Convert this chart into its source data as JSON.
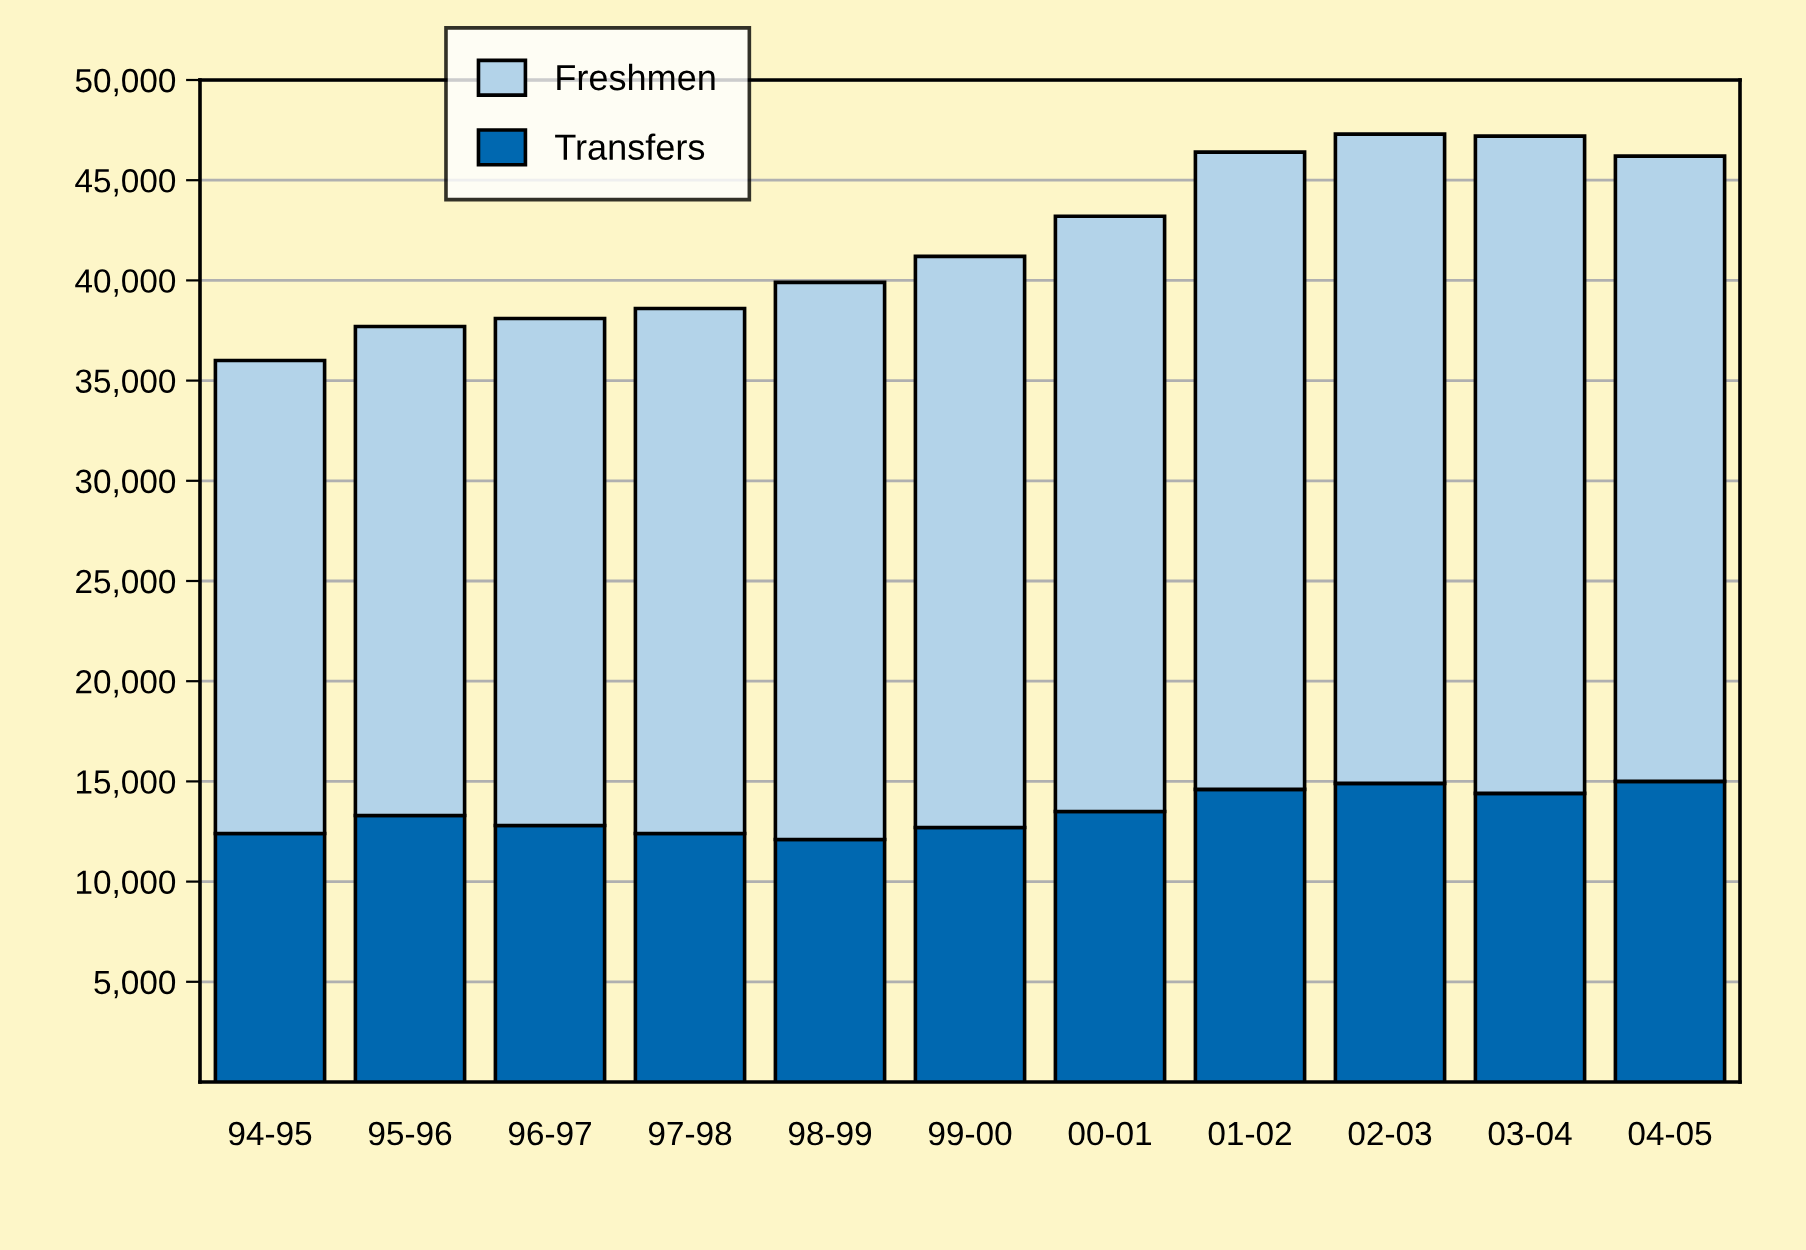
{
  "chart_data": {
    "type": "bar",
    "stacked": true,
    "categories": [
      "94-95",
      "95-96",
      "96-97",
      "97-98",
      "98-99",
      "99-00",
      "00-01",
      "01-02",
      "02-03",
      "03-04",
      "04-05"
    ],
    "series": [
      {
        "name": "Transfers",
        "color": "#0068b0",
        "values": [
          12400,
          13300,
          12800,
          12400,
          12100,
          12700,
          13500,
          14600,
          14900,
          14400,
          15000
        ]
      },
      {
        "name": "Freshmen",
        "color": "#b3d3e9",
        "values": [
          23600,
          24400,
          25300,
          26200,
          27800,
          28500,
          29700,
          31800,
          32400,
          32800,
          31200
        ]
      }
    ],
    "ylim": [
      0,
      50000
    ],
    "yticks": [
      {
        "value": 5000,
        "label": "5,000"
      },
      {
        "value": 10000,
        "label": "10,000"
      },
      {
        "value": 15000,
        "label": "15,000"
      },
      {
        "value": 20000,
        "label": "20,000"
      },
      {
        "value": 25000,
        "label": "25,000"
      },
      {
        "value": 30000,
        "label": "30,000"
      },
      {
        "value": 35000,
        "label": "35,000"
      },
      {
        "value": 40000,
        "label": "40,000"
      },
      {
        "value": 45000,
        "label": "45,000"
      },
      {
        "value": 50000,
        "label": "50,000"
      }
    ],
    "grid": "y",
    "legend": "top left"
  }
}
